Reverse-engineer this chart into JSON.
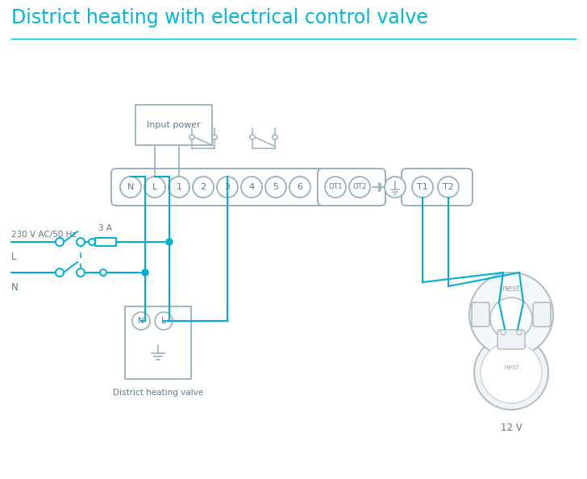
{
  "title": "District heating with electrical control valve",
  "title_color": "#00b5d6",
  "title_fontsize": 17,
  "bg_color": "#ffffff",
  "line_color": "#00afd6",
  "border_color": "#9ab0bc",
  "text_color": "#5c7a8a",
  "input_power_label": "Input power",
  "valve_label": "District heating valve",
  "nest_label": "12 V",
  "voltage_label": "230 V AC/50 Hz",
  "fuse_label": "3 A",
  "L_label": "L",
  "N_label": "N"
}
